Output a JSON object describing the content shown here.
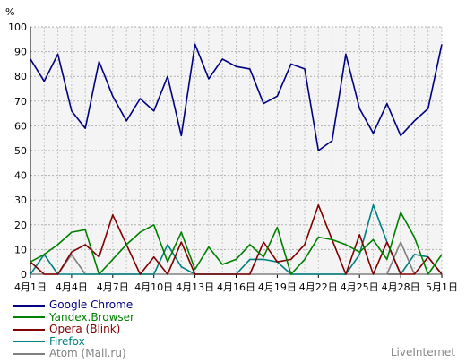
{
  "chart_data": {
    "type": "line",
    "ylabel": "%",
    "ylim": [
      0,
      100
    ],
    "ytick_labels": [
      "0",
      "10",
      "20",
      "30",
      "40",
      "50",
      "60",
      "70",
      "80",
      "90",
      "100"
    ],
    "x": [
      "4月1日",
      "4月2日",
      "4月3日",
      "4月4日",
      "4月5日",
      "4月6日",
      "4月7日",
      "4月8日",
      "4月9日",
      "4月10日",
      "4月11日",
      "4月12日",
      "4月13日",
      "4月14日",
      "4月15日",
      "4月16日",
      "4月17日",
      "4月18日",
      "4月19日",
      "4月20日",
      "4月21日",
      "4月22日",
      "4月23日",
      "4月24日",
      "4月25日",
      "4月26日",
      "4月27日",
      "4月28日",
      "4月29日",
      "4月30日",
      "5月1日"
    ],
    "xtick_labels": [
      "4月1日",
      "4月4日",
      "4月7日",
      "4月10日",
      "4月13日",
      "4月16日",
      "4月19日",
      "4月22日",
      "4月25日",
      "4月28日",
      "5月1日"
    ],
    "grid": true,
    "legend_position": "bottom-left",
    "series": [
      {
        "name": "Google Chrome",
        "color": "#000080",
        "values": [
          87,
          78,
          89,
          66,
          59,
          86,
          72,
          62,
          71,
          66,
          80,
          56,
          93,
          79,
          87,
          84,
          83,
          69,
          72,
          85,
          83,
          50,
          54,
          89,
          67,
          57,
          69,
          56,
          62,
          67,
          93
        ]
      },
      {
        "name": "Yandex.Browser",
        "color": "#008000",
        "values": [
          5,
          8,
          12,
          17,
          18,
          0,
          6,
          12,
          17,
          20,
          5,
          17,
          2,
          11,
          4,
          6,
          12,
          7,
          19,
          0,
          6,
          15,
          14,
          12,
          9,
          14,
          6,
          25,
          15,
          0,
          8
        ]
      },
      {
        "name": "Opera (Blink)",
        "color": "#800000",
        "values": [
          5,
          0,
          0,
          9,
          12,
          7,
          24,
          12,
          0,
          7,
          0,
          13,
          0,
          0,
          0,
          0,
          0,
          13,
          5,
          6,
          12,
          28,
          14,
          0,
          16,
          0,
          13,
          0,
          0,
          7,
          0
        ]
      },
      {
        "name": "Firefox",
        "color": "#008080",
        "values": [
          0,
          8,
          0,
          0,
          0,
          0,
          0,
          0,
          0,
          0,
          12,
          3,
          0,
          0,
          0,
          0,
          6,
          6,
          5,
          0,
          0,
          0,
          0,
          0,
          8,
          28,
          13,
          0,
          8,
          7,
          0
        ]
      },
      {
        "name": "Atom (Mail.ru)",
        "color": "#808080",
        "values": [
          0,
          0,
          0,
          8,
          0,
          0,
          0,
          0,
          0,
          0,
          0,
          0,
          0,
          0,
          0,
          0,
          0,
          0,
          0,
          0,
          0,
          0,
          0,
          0,
          0,
          0,
          0,
          13,
          0,
          0,
          0
        ]
      }
    ]
  },
  "credit": "LiveInternet"
}
